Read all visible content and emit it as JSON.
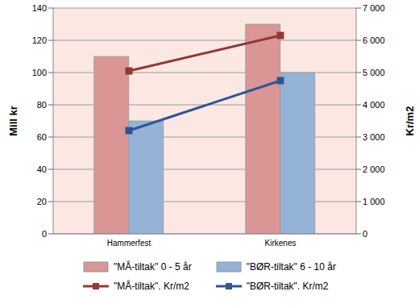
{
  "chart_data": {
    "type": "bar",
    "categories": [
      "Hammerfest",
      "Kirkenes"
    ],
    "y_label": "Mill kr",
    "y2_label": "Kr/m2",
    "ylim": [
      0,
      140
    ],
    "yticks": [
      0,
      20,
      40,
      60,
      80,
      100,
      120,
      140
    ],
    "y2lim": [
      0,
      7000
    ],
    "y2ticks": [
      0,
      {
        "value": 1000,
        "label": "1 000"
      },
      {
        "value": 2000,
        "label": "2 000"
      },
      {
        "value": 3000,
        "label": "3 000"
      },
      {
        "value": 4000,
        "label": "4 000"
      },
      {
        "value": 5000,
        "label": "5 000"
      },
      {
        "value": 6000,
        "label": "6 000"
      },
      {
        "value": 7000,
        "label": "7 000"
      }
    ],
    "grid": true,
    "legend": "bottom",
    "series": [
      {
        "name": "\"MÅ-tiltak\" 0 - 5 år",
        "type": "bar",
        "color": "#d99694",
        "values": [
          110,
          130
        ]
      },
      {
        "name": "\"BØR-tiltak\" 6 - 10 år",
        "type": "bar",
        "color": "#95b3d7",
        "values": [
          70,
          100
        ]
      },
      {
        "name": "\"MÅ-tiltak\". Kr/m2",
        "type": "line",
        "axis": "y2",
        "marker": "square",
        "color": "#953735",
        "values": [
          5050,
          6150
        ]
      },
      {
        "name": "\"BØR-tiltak\". Kr/m2",
        "type": "line",
        "axis": "y2",
        "marker": "square",
        "color": "#2f5597",
        "values": [
          3200,
          4750
        ]
      }
    ]
  }
}
